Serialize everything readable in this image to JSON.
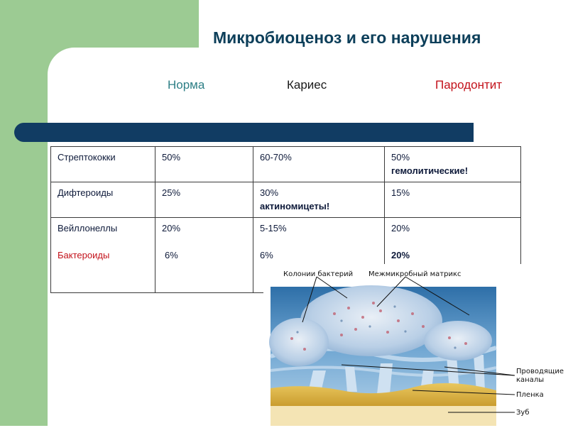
{
  "title": "Микробиоценоз и его нарушения",
  "columns": {
    "norm": "Норма",
    "caries": "Кариес",
    "periodontitis": "Пародонтит"
  },
  "colors": {
    "norm": "#2e7f86",
    "caries": "#1a1a1a",
    "periodontitis": "#c3121b",
    "title": "#0d3f5a",
    "background_band": "#9ccb93",
    "bar": "#113c63"
  },
  "table": {
    "rows": [
      {
        "name": "Стрептококки",
        "norm": "50%",
        "caries": "60-70%",
        "periodontitis": "50%",
        "periodontitis_note": "гемолитические!"
      },
      {
        "name": "Дифтероиды",
        "norm": "25%",
        "caries": "30%",
        "caries_note": "актиномицеты!",
        "periodontitis": "15%"
      },
      {
        "name": "Вейллонеллы",
        "norm": "20%",
        "caries": "5-15%",
        "periodontitis": "20%",
        "sub_name": "Бактероиды",
        "sub_norm": "6%",
        "sub_caries": "6%",
        "sub_periodontitis": "20%"
      }
    ]
  },
  "diagram": {
    "labels": {
      "colonies": "Колонии бактерий",
      "matrix": "Межмикробный матрикс",
      "channels_1": "Проводящие",
      "channels_2": "каналы",
      "film": "Пленка",
      "tooth": "Зуб"
    }
  }
}
